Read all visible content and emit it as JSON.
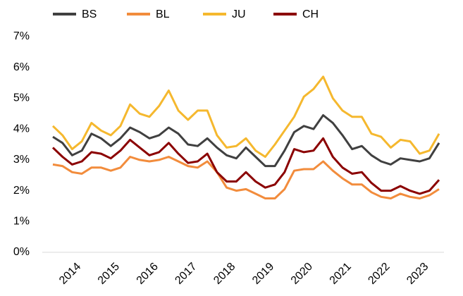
{
  "chart_data": {
    "type": "line",
    "x": [
      2013.5,
      2013.75,
      2014,
      2014.25,
      2014.5,
      2014.75,
      2015,
      2015.25,
      2015.5,
      2015.75,
      2016,
      2016.25,
      2016.5,
      2016.75,
      2017,
      2017.25,
      2017.5,
      2017.75,
      2018,
      2018.25,
      2018.5,
      2018.75,
      2019,
      2019.25,
      2019.5,
      2019.75,
      2020,
      2020.25,
      2020.5,
      2020.75,
      2021,
      2021.25,
      2021.5,
      2021.75,
      2022,
      2022.25,
      2022.5,
      2022.75,
      2023,
      2023.25,
      2023.5
    ],
    "series": [
      {
        "name": "BS",
        "color": "#404040",
        "values": [
          3.75,
          3.55,
          3.15,
          3.3,
          3.85,
          3.7,
          3.45,
          3.7,
          4.05,
          3.9,
          3.7,
          3.8,
          4.05,
          3.85,
          3.5,
          3.45,
          3.7,
          3.4,
          3.15,
          3.05,
          3.4,
          3.1,
          2.8,
          2.8,
          3.3,
          3.9,
          4.1,
          4.0,
          4.45,
          4.2,
          3.8,
          3.35,
          3.45,
          3.15,
          2.95,
          2.85,
          3.05,
          3.0,
          2.95,
          3.05,
          3.55
        ]
      },
      {
        "name": "BL",
        "color": "#f28c3c",
        "values": [
          2.85,
          2.8,
          2.6,
          2.55,
          2.75,
          2.75,
          2.65,
          2.75,
          3.1,
          3.0,
          2.95,
          3.0,
          3.1,
          2.95,
          2.8,
          2.75,
          2.95,
          2.6,
          2.1,
          2.0,
          2.05,
          1.9,
          1.75,
          1.75,
          2.05,
          2.65,
          2.7,
          2.7,
          2.95,
          2.65,
          2.4,
          2.2,
          2.2,
          1.95,
          1.8,
          1.75,
          1.9,
          1.8,
          1.75,
          1.85,
          2.05
        ]
      },
      {
        "name": "JU",
        "color": "#f5b82e",
        "values": [
          4.1,
          3.8,
          3.35,
          3.6,
          4.2,
          3.95,
          3.8,
          4.1,
          4.8,
          4.5,
          4.4,
          4.75,
          5.25,
          4.6,
          4.3,
          4.6,
          4.6,
          3.8,
          3.4,
          3.45,
          3.7,
          3.3,
          3.1,
          3.5,
          3.95,
          4.4,
          5.05,
          5.3,
          5.7,
          5.0,
          4.6,
          4.4,
          4.4,
          3.85,
          3.75,
          3.4,
          3.65,
          3.6,
          3.2,
          3.3,
          3.85
        ]
      },
      {
        "name": "CH",
        "color": "#8b0000",
        "values": [
          3.4,
          3.1,
          2.85,
          2.95,
          3.25,
          3.2,
          3.05,
          3.3,
          3.65,
          3.4,
          3.15,
          3.25,
          3.55,
          3.2,
          2.9,
          2.95,
          3.2,
          2.6,
          2.3,
          2.3,
          2.6,
          2.3,
          2.1,
          2.2,
          2.6,
          3.35,
          3.25,
          3.3,
          3.7,
          3.1,
          2.75,
          2.55,
          2.6,
          2.25,
          2.0,
          2.0,
          2.15,
          2.0,
          1.9,
          2.0,
          2.35
        ]
      }
    ],
    "xlim": [
      2013.5,
      2023.5
    ],
    "xticks": [
      2014,
      2015,
      2016,
      2017,
      2018,
      2019,
      2020,
      2021,
      2022,
      2023
    ],
    "ylim": [
      0,
      7
    ],
    "yticks": [
      {
        "value": 0,
        "label": "0%"
      },
      {
        "value": 1,
        "label": "1%"
      },
      {
        "value": 2,
        "label": "2%"
      },
      {
        "value": 3,
        "label": "3%"
      },
      {
        "value": 4,
        "label": "4%"
      },
      {
        "value": 5,
        "label": "5%"
      },
      {
        "value": 6,
        "label": "6%"
      },
      {
        "value": 7,
        "label": "7%"
      }
    ],
    "grid": false,
    "legend": "top"
  }
}
